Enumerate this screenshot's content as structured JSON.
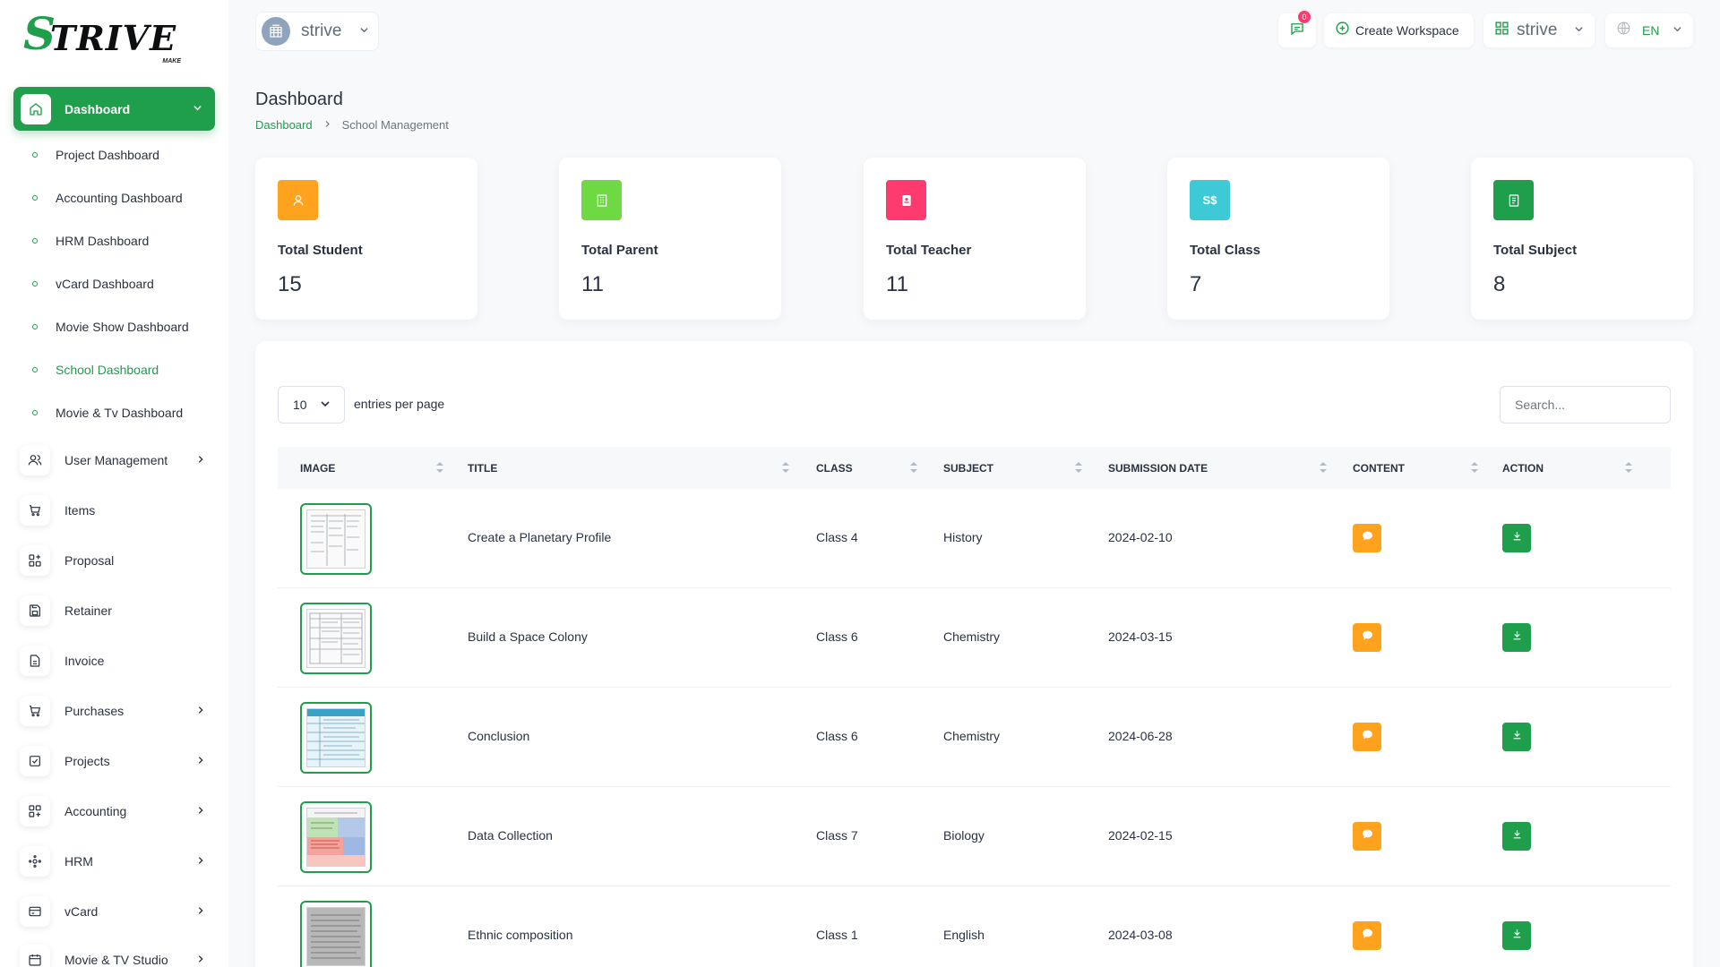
{
  "brand": {
    "name": "TRIVE",
    "sub": "MAKE"
  },
  "workspace": {
    "name": "strive"
  },
  "topbar": {
    "notifications_count": "0",
    "create_workspace_label": "Create Workspace",
    "user_name": "strive",
    "language": "EN"
  },
  "sidebar": {
    "dashboard_label": "Dashboard",
    "subitems": [
      {
        "label": "Project Dashboard"
      },
      {
        "label": "Accounting Dashboard"
      },
      {
        "label": "HRM Dashboard"
      },
      {
        "label": "vCard Dashboard"
      },
      {
        "label": "Movie Show Dashboard"
      },
      {
        "label": "School Dashboard"
      },
      {
        "label": "Movie & Tv Dashboard"
      }
    ],
    "items": [
      {
        "label": "User Management",
        "icon": "users-icon"
      },
      {
        "label": "Items",
        "icon": "cart-icon"
      },
      {
        "label": "Proposal",
        "icon": "proposal-icon"
      },
      {
        "label": "Retainer",
        "icon": "save-icon"
      },
      {
        "label": "Invoice",
        "icon": "file-icon"
      },
      {
        "label": "Purchases",
        "icon": "cart-icon"
      },
      {
        "label": "Projects",
        "icon": "check-square-icon"
      },
      {
        "label": "Accounting",
        "icon": "grid-icon"
      },
      {
        "label": "HRM",
        "icon": "hrm-icon"
      },
      {
        "label": "vCard",
        "icon": "card-icon"
      },
      {
        "label": "Movie & TV Studio",
        "icon": "calendar-icon"
      }
    ]
  },
  "page": {
    "title": "Dashboard",
    "breadcrumb": [
      "Dashboard",
      "School Management"
    ]
  },
  "stats": [
    {
      "label": "Total Student",
      "value": "15",
      "color": "#ffa21d",
      "icon": "user-icon"
    },
    {
      "label": "Total Parent",
      "value": "11",
      "color": "#6fd943",
      "icon": "building-icon"
    },
    {
      "label": "Total Teacher",
      "value": "11",
      "color": "#ff3a6e",
      "icon": "id-card-icon"
    },
    {
      "label": "Total Class",
      "value": "7",
      "color": "#3ec9d6",
      "icon": "currency-icon",
      "glyph": "S$"
    },
    {
      "label": "Total Subject",
      "value": "8",
      "color": "#1f9e4b",
      "icon": "report-icon"
    }
  ],
  "table": {
    "per_page": "10",
    "per_page_label": "entries per page",
    "search_placeholder": "Search...",
    "columns": [
      "IMAGE",
      "TITLE",
      "CLASS",
      "SUBJECT",
      "SUBMISSION DATE",
      "CONTENT",
      "ACTION"
    ],
    "rows": [
      {
        "title": "Create a Planetary Profile",
        "class": "Class 4",
        "subject": "History",
        "date": "2024-02-10"
      },
      {
        "title": "Build a Space Colony",
        "class": "Class 6",
        "subject": "Chemistry",
        "date": "2024-03-15"
      },
      {
        "title": "Conclusion",
        "class": "Class 6",
        "subject": "Chemistry",
        "date": "2024-06-28"
      },
      {
        "title": "Data Collection",
        "class": "Class 7",
        "subject": "Biology",
        "date": "2024-02-15"
      },
      {
        "title": "Ethnic composition",
        "class": "Class 1",
        "subject": "English",
        "date": "2024-03-08"
      }
    ]
  },
  "colors": {
    "accent": "#1f9e4b",
    "orange": "#ffa21d",
    "badge": "#ff3a6e"
  }
}
